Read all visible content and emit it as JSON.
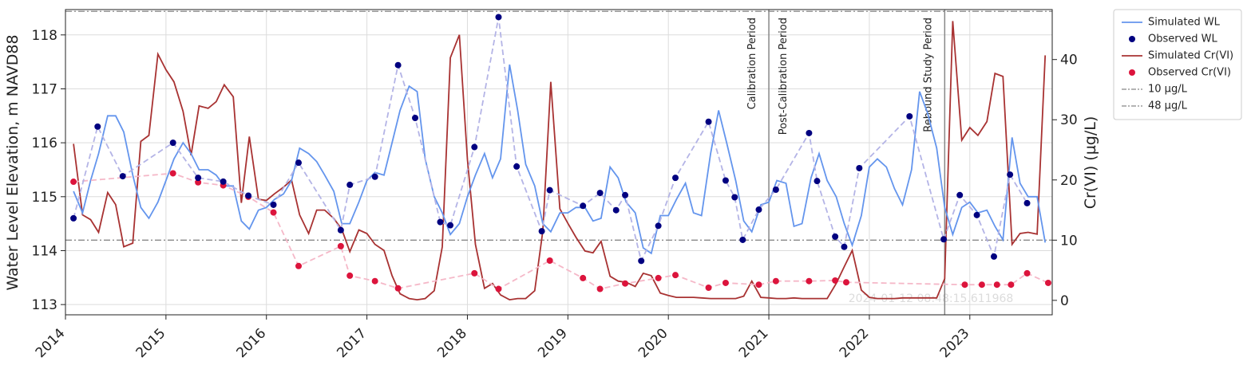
{
  "chart_data": {
    "type": "line",
    "y_label": "Water Level Elevation, m NAVD88",
    "y2_label": "Cr(VI) (µg/L)",
    "watermark": "2024-01-12 08:48:15.611968",
    "xlim": [
      2014,
      2023.82
    ],
    "xticks": [
      2014,
      2015,
      2016,
      2017,
      2018,
      2019,
      2020,
      2021,
      2022,
      2023
    ],
    "ylim": [
      112.81,
      118.47
    ],
    "yticks": [
      113,
      114,
      115,
      116,
      117,
      118
    ],
    "y2lim": [
      -2.4,
      48.3
    ],
    "y2ticks": [
      0,
      10,
      20,
      30,
      40
    ],
    "grid": true,
    "legend": "outside-upper-right",
    "x": [
      2014.08,
      2014.17,
      2014.25,
      2014.33,
      2014.42,
      2014.5,
      2014.58,
      2014.67,
      2014.75,
      2014.83,
      2014.92,
      2015.0,
      2015.08,
      2015.17,
      2015.25,
      2015.33,
      2015.42,
      2015.5,
      2015.58,
      2015.67,
      2015.75,
      2015.83,
      2015.92,
      2016.0,
      2016.08,
      2016.17,
      2016.25,
      2016.33,
      2016.42,
      2016.5,
      2016.58,
      2016.67,
      2016.75,
      2016.83,
      2016.92,
      2017.0,
      2017.08,
      2017.17,
      2017.25,
      2017.33,
      2017.42,
      2017.5,
      2017.58,
      2017.67,
      2017.75,
      2017.83,
      2017.92,
      2018.0,
      2018.08,
      2018.17,
      2018.25,
      2018.33,
      2018.42,
      2018.5,
      2018.58,
      2018.67,
      2018.75,
      2018.83,
      2018.92,
      2019.0,
      2019.08,
      2019.17,
      2019.25,
      2019.33,
      2019.42,
      2019.5,
      2019.58,
      2019.67,
      2019.75,
      2019.83,
      2019.92,
      2020.0,
      2020.08,
      2020.17,
      2020.25,
      2020.33,
      2020.42,
      2020.5,
      2020.58,
      2020.67,
      2020.75,
      2020.83,
      2020.92,
      2021.0,
      2021.08,
      2021.17,
      2021.25,
      2021.33,
      2021.42,
      2021.5,
      2021.58,
      2021.67,
      2021.75,
      2021.83,
      2021.92,
      2022.0,
      2022.08,
      2022.17,
      2022.25,
      2022.33,
      2022.42,
      2022.5,
      2022.58,
      2022.67,
      2022.75,
      2022.83,
      2022.92,
      2023.0,
      2023.08,
      2023.17,
      2023.25,
      2023.33,
      2023.42,
      2023.5,
      2023.58,
      2023.67,
      2023.75
    ],
    "series": [
      {
        "name": "Simulated WL",
        "type": "line",
        "axis": "y",
        "color": "#6495ed",
        "values": [
          115.1,
          114.7,
          115.3,
          115.8,
          116.5,
          116.5,
          116.2,
          115.4,
          114.8,
          114.6,
          114.9,
          115.3,
          115.7,
          116.0,
          115.8,
          115.5,
          115.5,
          115.4,
          115.2,
          115.2,
          114.55,
          114.4,
          114.75,
          114.8,
          114.95,
          115.05,
          115.3,
          115.9,
          115.8,
          115.65,
          115.4,
          115.1,
          114.5,
          114.5,
          114.9,
          115.3,
          115.45,
          115.4,
          116.0,
          116.6,
          117.05,
          116.95,
          115.7,
          115.0,
          114.7,
          114.3,
          114.5,
          115.0,
          115.4,
          115.8,
          115.35,
          115.7,
          117.45,
          116.6,
          115.6,
          115.2,
          114.5,
          114.35,
          114.7,
          114.7,
          114.8,
          114.8,
          114.55,
          114.6,
          115.55,
          115.35,
          114.9,
          114.7,
          114.05,
          113.95,
          114.65,
          114.65,
          114.95,
          115.25,
          114.7,
          114.65,
          115.8,
          116.6,
          116.0,
          115.3,
          114.55,
          114.35,
          114.85,
          114.9,
          115.3,
          115.25,
          114.45,
          114.5,
          115.35,
          115.8,
          115.3,
          115.0,
          114.5,
          114.1,
          114.65,
          115.55,
          115.7,
          115.55,
          115.15,
          114.85,
          115.5,
          116.95,
          116.55,
          115.9,
          114.8,
          114.3,
          114.8,
          114.9,
          114.7,
          114.75,
          114.45,
          114.2,
          116.1,
          115.25,
          115.0,
          115.0,
          114.15
        ]
      },
      {
        "name": "Observed WL",
        "type": "scatter",
        "axis": "y",
        "color": "#000080",
        "connector_color": "#b4b4e6",
        "x": [
          2014.08,
          2014.32,
          2014.57,
          2015.07,
          2015.32,
          2015.57,
          2015.82,
          2016.07,
          2016.32,
          2016.74,
          2016.83,
          2017.08,
          2017.31,
          2017.48,
          2017.73,
          2017.83,
          2018.07,
          2018.31,
          2018.49,
          2018.74,
          2018.82,
          2019.15,
          2019.32,
          2019.48,
          2019.57,
          2019.73,
          2019.9,
          2020.07,
          2020.4,
          2020.57,
          2020.66,
          2020.74,
          2020.9,
          2021.07,
          2021.4,
          2021.48,
          2021.66,
          2021.75,
          2021.9,
          2022.4,
          2022.74,
          2022.9,
          2023.07,
          2023.24,
          2023.4,
          2023.57
        ],
        "values": [
          114.6,
          116.3,
          115.38,
          116.0,
          115.35,
          115.28,
          115.02,
          114.85,
          115.63,
          114.38,
          115.22,
          115.37,
          117.44,
          116.46,
          114.53,
          114.47,
          115.92,
          118.33,
          115.56,
          114.36,
          115.12,
          114.83,
          115.07,
          114.75,
          115.03,
          113.81,
          114.46,
          115.35,
          116.39,
          115.3,
          114.99,
          114.2,
          114.76,
          115.13,
          116.18,
          115.29,
          114.26,
          114.07,
          115.53,
          116.49,
          114.21,
          115.03,
          114.66,
          113.89,
          115.41,
          114.88
        ]
      },
      {
        "name": "Simulated Cr(VI)",
        "type": "line",
        "axis": "y2",
        "color": "#a83232",
        "values": [
          26,
          14.2,
          13.4,
          11.3,
          17.9,
          15.9,
          8.9,
          9.5,
          26.4,
          27.4,
          40.9,
          38.3,
          36.3,
          31.4,
          24.1,
          32.3,
          31.9,
          33,
          35.8,
          33.8,
          16.2,
          27.2,
          16.8,
          16.6,
          17.7,
          18.8,
          20,
          14.2,
          11.1,
          15,
          15,
          13.6,
          11.8,
          8.1,
          11.7,
          11.1,
          9.3,
          8.3,
          4.1,
          1.1,
          0.3,
          0.1,
          0.3,
          1.6,
          8.9,
          40.3,
          44.1,
          23.4,
          9.3,
          2,
          2.8,
          0.9,
          0.1,
          0.3,
          0.3,
          1.6,
          11.5,
          36.3,
          15.2,
          12.8,
          10.5,
          8.2,
          7.9,
          9.8,
          4,
          3.2,
          3,
          2.3,
          4.5,
          4.1,
          1.2,
          0.8,
          0.5,
          0.5,
          0.5,
          0.4,
          0.3,
          0.3,
          0.3,
          0.3,
          0.7,
          3.2,
          0.5,
          0.4,
          0.3,
          0.3,
          0.4,
          0.3,
          0.3,
          0.3,
          0.3,
          2.8,
          5.6,
          8.3,
          1.7,
          0.5,
          0.3,
          0.3,
          0.3,
          0.4,
          0.4,
          0.4,
          0.4,
          0.4,
          3.6,
          46.4,
          26.6,
          28.7,
          27.4,
          29.7,
          37.7,
          37.2,
          9.3,
          11.1,
          11.3,
          11,
          40.7
        ]
      },
      {
        "name": "Observed Cr(VI)",
        "type": "scatter",
        "axis": "y2",
        "color": "#dc143c",
        "connector_color": "#f5b8c8",
        "x": [
          2014.08,
          2015.07,
          2015.32,
          2015.57,
          2015.82,
          2016.07,
          2016.32,
          2016.74,
          2016.83,
          2017.08,
          2017.31,
          2018.07,
          2018.31,
          2018.82,
          2019.15,
          2019.32,
          2019.57,
          2019.9,
          2020.07,
          2020.4,
          2020.57,
          2020.9,
          2021.07,
          2021.4,
          2021.66,
          2021.77,
          2022.95,
          2023.12,
          2023.27,
          2023.41,
          2023.57,
          2023.78
        ],
        "values": [
          19.7,
          21.1,
          19.6,
          19.1,
          17.2,
          14.6,
          5.7,
          9.0,
          4.1,
          3.2,
          2.0,
          4.5,
          1.9,
          6.6,
          3.7,
          1.9,
          2.8,
          3.7,
          4.2,
          2.1,
          2.9,
          2.6,
          3.2,
          3.2,
          3.3,
          3.0,
          2.6,
          2.6,
          2.6,
          2.6,
          4.5,
          2.9
        ]
      }
    ],
    "hlines": [
      {
        "name": "10 µg/L",
        "value": 10,
        "axis": "y2",
        "color": "#888888"
      },
      {
        "name": "48 µg/L",
        "value": 48,
        "axis": "y2",
        "color": "#888888"
      }
    ],
    "vlines": [
      {
        "x": 2021.0,
        "color": "#888888"
      },
      {
        "x": 2022.75,
        "color": "#888888"
      }
    ],
    "annotations": [
      {
        "text": "Calibration Period",
        "x": 2021.0,
        "side": "left"
      },
      {
        "text": "Post-Calibration Period",
        "x": 2021.0,
        "side": "right"
      },
      {
        "text": "Rebound Study Period",
        "x": 2022.75,
        "side": "left"
      }
    ]
  }
}
